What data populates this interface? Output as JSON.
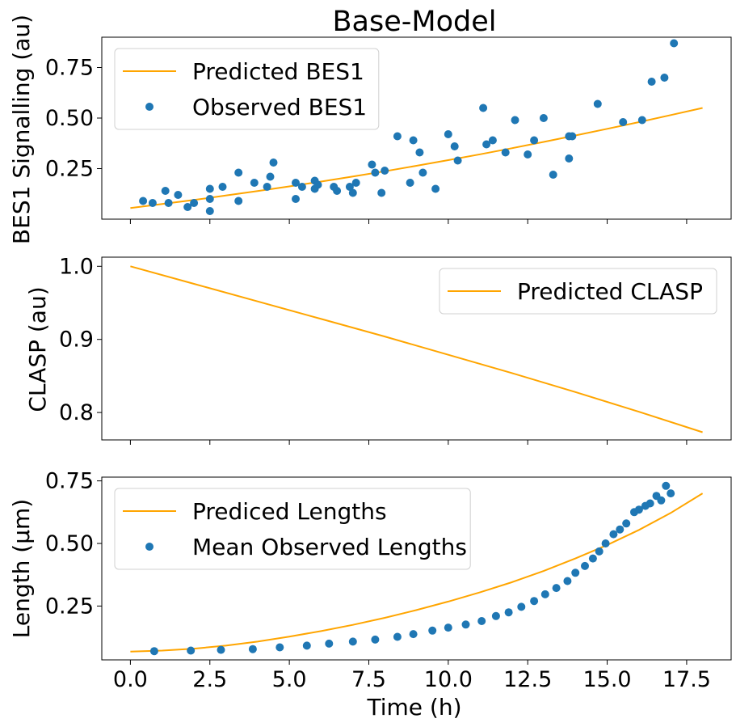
{
  "colors": {
    "predicted": "#FFA500",
    "observed": "#1F77B4"
  },
  "chart_data": [
    {
      "type": "line+scatter",
      "title": "Base-Model",
      "ylabel": "BES1 Signalling (au)",
      "xlabel": "",
      "xlim": [
        -0.9,
        18.9
      ],
      "ylim": [
        0.0,
        0.9
      ],
      "yticks": [
        0.25,
        0.5,
        0.75
      ],
      "ytick_labels": [
        "0.25",
        "0.50",
        "0.75"
      ],
      "legend_position": "upper-left",
      "series": [
        {
          "name": "Predicted BES1",
          "kind": "line",
          "x": [
            0,
            1,
            2,
            3,
            4,
            5,
            6,
            7,
            8,
            9,
            10,
            11,
            12,
            13,
            14,
            15,
            16,
            17,
            18
          ],
          "y": [
            0.055,
            0.075,
            0.095,
            0.117,
            0.139,
            0.162,
            0.186,
            0.211,
            0.237,
            0.264,
            0.292,
            0.321,
            0.351,
            0.382,
            0.414,
            0.447,
            0.48,
            0.515,
            0.55
          ]
        },
        {
          "name": "Observed BES1",
          "kind": "scatter",
          "x": [
            0.4,
            0.7,
            1.1,
            1.2,
            1.5,
            1.8,
            2.0,
            2.5,
            2.5,
            2.5,
            2.9,
            3.4,
            3.4,
            3.9,
            4.3,
            4.4,
            4.5,
            5.2,
            5.2,
            5.4,
            5.8,
            5.8,
            5.9,
            6.4,
            6.5,
            6.9,
            7.0,
            7.1,
            7.6,
            7.7,
            7.9,
            8.0,
            8.4,
            8.8,
            8.9,
            9.1,
            9.2,
            9.6,
            10.0,
            10.2,
            10.3,
            11.1,
            11.2,
            11.4,
            11.8,
            12.1,
            12.5,
            12.7,
            13.0,
            13.3,
            13.8,
            13.8,
            13.9,
            14.7,
            15.5,
            16.1,
            16.4,
            16.8,
            17.1
          ],
          "y": [
            0.09,
            0.08,
            0.14,
            0.08,
            0.12,
            0.06,
            0.08,
            0.15,
            0.1,
            0.04,
            0.16,
            0.23,
            0.09,
            0.18,
            0.16,
            0.21,
            0.28,
            0.18,
            0.1,
            0.16,
            0.19,
            0.15,
            0.17,
            0.16,
            0.14,
            0.16,
            0.13,
            0.18,
            0.27,
            0.23,
            0.13,
            0.24,
            0.41,
            0.18,
            0.39,
            0.33,
            0.23,
            0.15,
            0.42,
            0.36,
            0.29,
            0.55,
            0.37,
            0.39,
            0.33,
            0.49,
            0.32,
            0.39,
            0.5,
            0.22,
            0.3,
            0.41,
            0.41,
            0.57,
            0.48,
            0.49,
            0.68,
            0.7,
            0.87
          ]
        }
      ]
    },
    {
      "type": "line",
      "title": "",
      "ylabel": "CLASP (au)",
      "xlabel": "",
      "xlim": [
        -0.9,
        18.9
      ],
      "ylim": [
        0.7625,
        1.0125
      ],
      "yticks": [
        0.8,
        0.9,
        1.0
      ],
      "ytick_labels": [
        "0.8",
        "0.9",
        "1.0"
      ],
      "legend_position": "upper-right",
      "series": [
        {
          "name": "Predicted CLASP",
          "kind": "line",
          "x": [
            0,
            2,
            4,
            6,
            8,
            10,
            12,
            14,
            16,
            18
          ],
          "y": [
            1.0,
            0.976,
            0.952,
            0.928,
            0.904,
            0.879,
            0.854,
            0.828,
            0.801,
            0.773
          ]
        }
      ]
    },
    {
      "type": "line+scatter",
      "title": "",
      "ylabel": "Length (μm)",
      "xlabel": "Time (h)",
      "xlim": [
        -0.9,
        18.9
      ],
      "xticks": [
        0,
        2.5,
        5,
        7.5,
        10,
        12.5,
        15,
        17.5
      ],
      "xtick_labels": [
        "0.0",
        "2.5",
        "5.0",
        "7.5",
        "10.0",
        "12.5",
        "15.0",
        "17.5"
      ],
      "ylim": [
        0.035,
        0.765
      ],
      "yticks": [
        0.25,
        0.5,
        0.75
      ],
      "ytick_labels": [
        "0.25",
        "0.50",
        "0.75"
      ],
      "legend_position": "upper-left",
      "series": [
        {
          "name": "Prediced Lengths",
          "kind": "line",
          "x": [
            0,
            1,
            2,
            3,
            4,
            5,
            6,
            7,
            8,
            9,
            10,
            11,
            12,
            13,
            14,
            15,
            16,
            17,
            18
          ],
          "y": [
            0.068,
            0.072,
            0.08,
            0.092,
            0.108,
            0.128,
            0.15,
            0.175,
            0.203,
            0.234,
            0.268,
            0.305,
            0.345,
            0.39,
            0.44,
            0.494,
            0.554,
            0.622,
            0.7
          ]
        },
        {
          "name": "Mean Observed Lengths",
          "kind": "scatter",
          "x": [
            0.75,
            1.9,
            2.85,
            3.85,
            4.7,
            5.55,
            6.25,
            7.0,
            7.7,
            8.4,
            8.9,
            9.5,
            10.0,
            10.55,
            11.05,
            11.5,
            11.9,
            12.3,
            12.7,
            13.05,
            13.4,
            13.75,
            14.0,
            14.3,
            14.55,
            14.75,
            14.95,
            15.2,
            15.4,
            15.6,
            15.85,
            16.0,
            16.2,
            16.35,
            16.55,
            16.7,
            16.85,
            17.0
          ],
          "y": [
            0.07,
            0.072,
            0.075,
            0.078,
            0.085,
            0.092,
            0.1,
            0.108,
            0.116,
            0.127,
            0.138,
            0.152,
            0.164,
            0.176,
            0.19,
            0.21,
            0.225,
            0.247,
            0.27,
            0.297,
            0.322,
            0.35,
            0.383,
            0.41,
            0.44,
            0.468,
            0.5,
            0.537,
            0.556,
            0.58,
            0.625,
            0.635,
            0.65,
            0.66,
            0.69,
            0.672,
            0.73,
            0.7
          ]
        }
      ]
    }
  ]
}
